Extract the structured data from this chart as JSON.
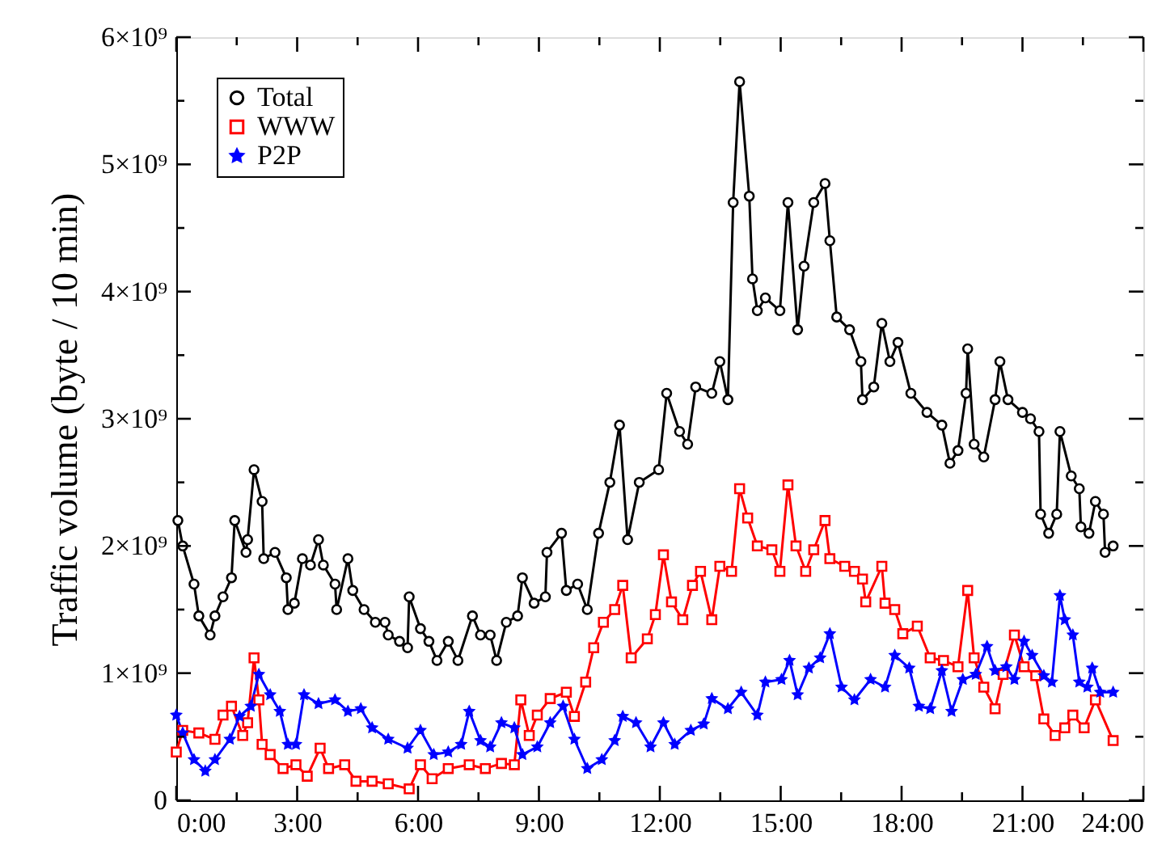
{
  "chart_data": {
    "type": "line",
    "ylabel": "Traffic volume (byte / 10 min)",
    "xlim": [
      0,
      24
    ],
    "ylim": [
      0,
      6000000000.0
    ],
    "xticks": [
      {
        "value": 0,
        "label": "0:00"
      },
      {
        "value": 1.5,
        "label": null
      },
      {
        "value": 3,
        "label": "3:00"
      },
      {
        "value": 4.5,
        "label": null
      },
      {
        "value": 6,
        "label": "6:00"
      },
      {
        "value": 7.5,
        "label": null
      },
      {
        "value": 9,
        "label": "9:00"
      },
      {
        "value": 10.5,
        "label": null
      },
      {
        "value": 12,
        "label": "12:00"
      },
      {
        "value": 13.5,
        "label": null
      },
      {
        "value": 15,
        "label": "15:00"
      },
      {
        "value": 16.5,
        "label": null
      },
      {
        "value": 18,
        "label": "18:00"
      },
      {
        "value": 19.5,
        "label": null
      },
      {
        "value": 21,
        "label": "21:00"
      },
      {
        "value": 22.5,
        "label": null
      },
      {
        "value": 24,
        "label": "24:00"
      }
    ],
    "yticks": [
      0,
      {
        "value": 500000000.0,
        "label": null
      },
      {
        "value": 1000000000.0,
        "label": "1×10⁹"
      },
      {
        "value": 1500000000.0,
        "label": null
      },
      {
        "value": 2000000000.0,
        "label": "2×10⁹"
      },
      {
        "value": 2500000000.0,
        "label": null
      },
      {
        "value": 3000000000.0,
        "label": "3×10⁹"
      },
      {
        "value": 3500000000.0,
        "label": null
      },
      {
        "value": 4000000000.0,
        "label": "4×10⁹"
      },
      {
        "value": 4500000000.0,
        "label": null
      },
      {
        "value": 5000000000.0,
        "label": "5×10⁹"
      },
      {
        "value": 5500000000.0,
        "label": null
      },
      {
        "value": 6000000000.0,
        "label": "6×10⁹"
      }
    ],
    "grid": false,
    "legend": "top left",
    "line_style": "solid",
    "series": [
      {
        "name": "Total",
        "color": "#000000",
        "marker": "circle",
        "x": [
          0.04,
          0.16,
          0.44,
          0.56,
          0.84,
          0.96,
          1.16,
          1.37,
          1.45,
          1.73,
          1.77,
          1.93,
          2.13,
          2.17,
          2.45,
          2.73,
          2.77,
          2.93,
          3.13,
          3.33,
          3.53,
          3.65,
          3.94,
          3.98,
          4.26,
          4.38,
          4.66,
          4.94,
          5.18,
          5.26,
          5.54,
          5.74,
          5.78,
          6.06,
          6.27,
          6.47,
          6.75,
          6.99,
          7.35,
          7.55,
          7.79,
          7.95,
          8.19,
          8.47,
          8.59,
          8.88,
          9.16,
          9.2,
          9.56,
          9.68,
          9.96,
          10.2,
          10.48,
          10.76,
          11.0,
          11.2,
          11.49,
          11.97,
          12.17,
          12.49,
          12.69,
          12.89,
          13.29,
          13.49,
          13.69,
          13.82,
          13.98,
          14.22,
          14.3,
          14.42,
          14.62,
          14.98,
          15.18,
          15.42,
          15.58,
          15.82,
          16.1,
          16.22,
          16.39,
          16.71,
          16.99,
          17.03,
          17.31,
          17.51,
          17.71,
          17.91,
          18.23,
          18.63,
          19.0,
          19.2,
          19.4,
          19.6,
          19.64,
          19.8,
          20.04,
          20.32,
          20.44,
          20.64,
          21.0,
          21.2,
          21.41,
          21.45,
          21.65,
          21.85,
          21.93,
          22.21,
          22.41,
          22.45,
          22.65,
          22.81,
          23.01,
          23.05,
          23.25
        ],
        "values": [
          2200000000.0,
          2000000000.0,
          1700000000.0,
          1450000000.0,
          1300000000.0,
          1450000000.0,
          1600000000.0,
          1750000000.0,
          2200000000.0,
          1950000000.0,
          2050000000.0,
          2600000000.0,
          2350000000.0,
          1900000000.0,
          1950000000.0,
          1750000000.0,
          1500000000.0,
          1550000000.0,
          1900000000.0,
          1850000000.0,
          2050000000.0,
          1850000000.0,
          1700000000.0,
          1500000000.0,
          1900000000.0,
          1650000000.0,
          1500000000.0,
          1400000000.0,
          1400000000.0,
          1300000000.0,
          1250000000.0,
          1200000000.0,
          1600000000.0,
          1350000000.0,
          1250000000.0,
          1100000000.0,
          1250000000.0,
          1100000000.0,
          1450000000.0,
          1300000000.0,
          1300000000.0,
          1100000000.0,
          1400000000.0,
          1450000000.0,
          1750000000.0,
          1550000000.0,
          1600000000.0,
          1950000000.0,
          2100000000.0,
          1650000000.0,
          1700000000.0,
          1500000000.0,
          2100000000.0,
          2500000000.0,
          2950000000.0,
          2050000000.0,
          2500000000.0,
          2600000000.0,
          3200000000.0,
          2900000000.0,
          2800000000.0,
          3250000000.0,
          3200000000.0,
          3450000000.0,
          3150000000.0,
          4700000000.0,
          5650000000.0,
          4750000000.0,
          4100000000.0,
          3850000000.0,
          3950000000.0,
          3850000000.0,
          4700000000.0,
          3700000000.0,
          4200000000.0,
          4700000000.0,
          4850000000.0,
          4400000000.0,
          3800000000.0,
          3700000000.0,
          3450000000.0,
          3150000000.0,
          3250000000.0,
          3750000000.0,
          3450000000.0,
          3600000000.0,
          3200000000.0,
          3050000000.0,
          2950000000.0,
          2650000000.0,
          2750000000.0,
          3200000000.0,
          3550000000.0,
          2800000000.0,
          2700000000.0,
          3150000000.0,
          3450000000.0,
          3150000000.0,
          3050000000.0,
          3000000000.0,
          2900000000.0,
          2250000000.0,
          2100000000.0,
          2250000000.0,
          2900000000.0,
          2550000000.0,
          2450000000.0,
          2150000000.0,
          2100000000.0,
          2350000000.0,
          2250000000.0,
          1950000000.0,
          2000000000.0
        ]
      },
      {
        "name": "WWW",
        "color": "#ff0000",
        "marker": "square",
        "x": [
          0,
          0.16,
          0.56,
          0.96,
          1.16,
          1.37,
          1.65,
          1.77,
          1.93,
          2.05,
          2.13,
          2.33,
          2.65,
          2.97,
          3.25,
          3.57,
          3.78,
          4.18,
          4.46,
          4.86,
          5.26,
          5.78,
          6.06,
          6.35,
          6.75,
          7.27,
          7.67,
          8.07,
          8.39,
          8.55,
          8.76,
          8.96,
          9.28,
          9.68,
          9.88,
          10.16,
          10.36,
          10.6,
          10.88,
          11.08,
          11.29,
          11.69,
          11.89,
          12.09,
          12.29,
          12.57,
          12.81,
          13.01,
          13.29,
          13.49,
          13.78,
          13.98,
          14.18,
          14.42,
          14.78,
          14.98,
          15.18,
          15.38,
          15.62,
          15.82,
          16.1,
          16.22,
          16.59,
          16.83,
          17.03,
          17.11,
          17.51,
          17.59,
          17.83,
          18.03,
          18.39,
          18.71,
          19.04,
          19.4,
          19.64,
          19.8,
          20.04,
          20.32,
          20.52,
          20.8,
          21.04,
          21.33,
          21.53,
          21.81,
          22.05,
          22.25,
          22.53,
          22.81,
          23.25
        ],
        "values": [
          380000000.0,
          550000000.0,
          530000000.0,
          480000000.0,
          670000000.0,
          740000000.0,
          510000000.0,
          610000000.0,
          1120000000.0,
          790000000.0,
          440000000.0,
          360000000.0,
          250000000.0,
          280000000.0,
          190000000.0,
          410000000.0,
          250000000.0,
          280000000.0,
          150000000.0,
          150000000.0,
          130000000.0,
          90000000.0,
          280000000.0,
          170000000.0,
          250000000.0,
          280000000.0,
          250000000.0,
          290000000.0,
          280000000.0,
          790000000.0,
          510000000.0,
          670000000.0,
          800000000.0,
          850000000.0,
          660000000.0,
          930000000.0,
          1200000000.0,
          1400000000.0,
          1500000000.0,
          1690000000.0,
          1120000000.0,
          1270000000.0,
          1460000000.0,
          1930000000.0,
          1560000000.0,
          1420000000.0,
          1690000000.0,
          1800000000.0,
          1420000000.0,
          1840000000.0,
          1800000000.0,
          2450000000.0,
          2220000000.0,
          2000000000.0,
          1970000000.0,
          1800000000.0,
          2480000000.0,
          2000000000.0,
          1800000000.0,
          1970000000.0,
          2200000000.0,
          1900000000.0,
          1840000000.0,
          1800000000.0,
          1740000000.0,
          1560000000.0,
          1840000000.0,
          1550000000.0,
          1500000000.0,
          1310000000.0,
          1370000000.0,
          1120000000.0,
          1100000000.0,
          1050000000.0,
          1650000000.0,
          1120000000.0,
          890000000.0,
          720000000.0,
          990000000.0,
          1300000000.0,
          1050000000.0,
          980000000.0,
          640000000.0,
          510000000.0,
          570000000.0,
          670000000.0,
          570000000.0,
          790000000.0,
          470000000.0
        ]
      },
      {
        "name": "P2P",
        "color": "#0000ff",
        "marker": "star",
        "x": [
          0,
          0.16,
          0.44,
          0.72,
          0.96,
          1.33,
          1.57,
          1.85,
          2.05,
          2.33,
          2.57,
          2.77,
          2.97,
          3.17,
          3.53,
          3.94,
          4.26,
          4.58,
          4.86,
          5.26,
          5.74,
          6.06,
          6.39,
          6.75,
          7.07,
          7.27,
          7.55,
          7.79,
          8.07,
          8.39,
          8.59,
          8.96,
          9.28,
          9.6,
          9.88,
          10.2,
          10.56,
          10.88,
          11.08,
          11.41,
          11.77,
          12.09,
          12.37,
          12.77,
          13.09,
          13.29,
          13.69,
          14.02,
          14.42,
          14.62,
          15.02,
          15.22,
          15.42,
          15.7,
          15.98,
          16.22,
          16.51,
          16.83,
          17.23,
          17.59,
          17.83,
          18.19,
          18.43,
          18.71,
          19.0,
          19.24,
          19.52,
          19.84,
          20.12,
          20.32,
          20.6,
          20.8,
          21.04,
          21.24,
          21.53,
          21.73,
          21.93,
          22.05,
          22.25,
          22.41,
          22.61,
          22.73,
          22.93,
          23.25
        ],
        "values": [
          670000000.0,
          530000000.0,
          320000000.0,
          230000000.0,
          320000000.0,
          480000000.0,
          660000000.0,
          740000000.0,
          990000000.0,
          830000000.0,
          700000000.0,
          440000000.0,
          440000000.0,
          830000000.0,
          760000000.0,
          790000000.0,
          700000000.0,
          720000000.0,
          570000000.0,
          480000000.0,
          410000000.0,
          550000000.0,
          360000000.0,
          380000000.0,
          440000000.0,
          700000000.0,
          470000000.0,
          420000000.0,
          610000000.0,
          570000000.0,
          360000000.0,
          420000000.0,
          610000000.0,
          740000000.0,
          480000000.0,
          250000000.0,
          320000000.0,
          470000000.0,
          660000000.0,
          610000000.0,
          420000000.0,
          610000000.0,
          440000000.0,
          550000000.0,
          600000000.0,
          800000000.0,
          720000000.0,
          850000000.0,
          670000000.0,
          930000000.0,
          950000000.0,
          1100000000.0,
          830000000.0,
          1040000000.0,
          1120000000.0,
          1310000000.0,
          890000000.0,
          790000000.0,
          950000000.0,
          890000000.0,
          1140000000.0,
          1040000000.0,
          740000000.0,
          720000000.0,
          1020000000.0,
          700000000.0,
          950000000.0,
          990000000.0,
          1210000000.0,
          1020000000.0,
          1050000000.0,
          950000000.0,
          1250000000.0,
          1140000000.0,
          980000000.0,
          930000000.0,
          1610000000.0,
          1420000000.0,
          1300000000.0,
          930000000.0,
          890000000.0,
          1040000000.0,
          850000000.0,
          850000000.0
        ]
      }
    ]
  }
}
